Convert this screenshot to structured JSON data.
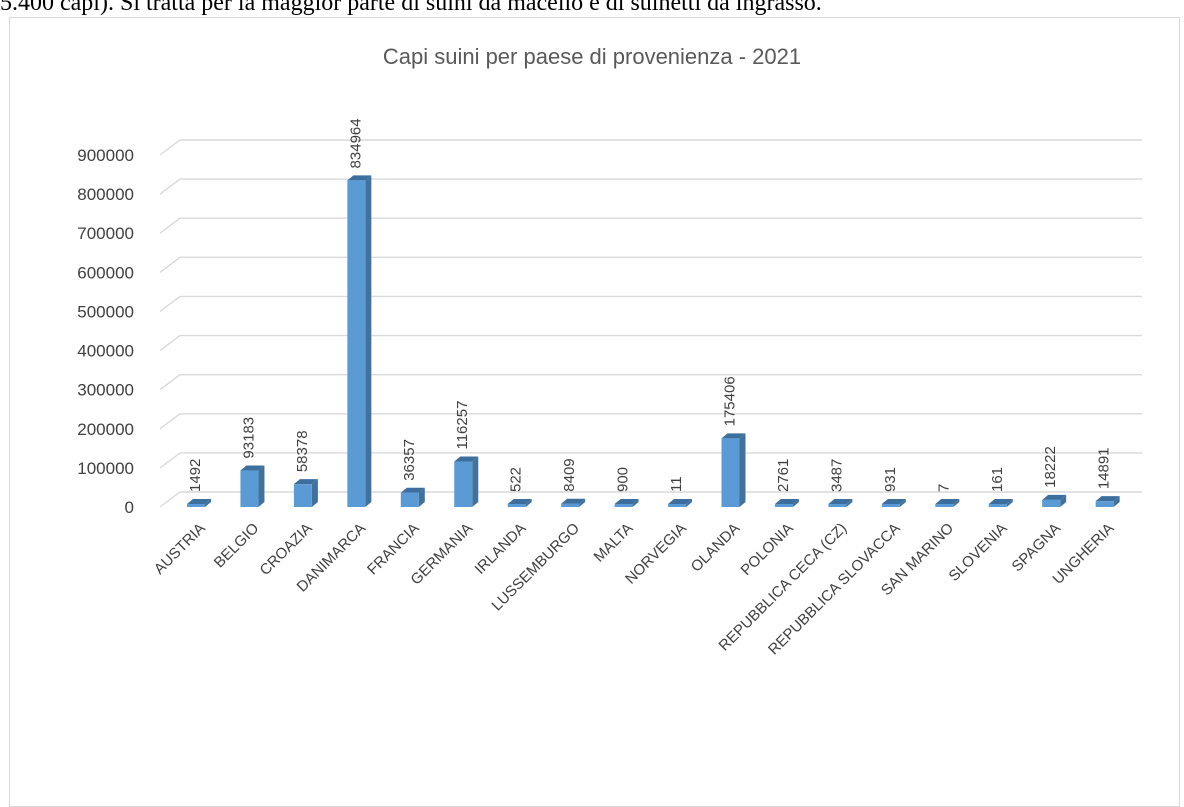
{
  "document": {
    "text_line": "5.400 capi). Si tratta per la maggior parte di suini da macello e di suinetti da ingrasso."
  },
  "chart_data": {
    "type": "bar",
    "title": "Capi suini per paese di provenienza - 2021",
    "xlabel": "",
    "ylabel": "",
    "categories": [
      "AUSTRIA",
      "BELGIO",
      "CROAZIA",
      "DANIMARCA",
      "FRANCIA",
      "GERMANIA",
      "IRLANDA",
      "LUSSEMBURGO",
      "MALTA",
      "NORVEGIA",
      "OLANDA",
      "POLONIA",
      "REPUBBLICA CECA   (CZ)",
      "REPUBBLICA SLOVACCA",
      "SAN MARINO",
      "SLOVENIA",
      "SPAGNA",
      "UNGHERIA"
    ],
    "values": [
      1492,
      93183,
      58378,
      834964,
      36357,
      116257,
      522,
      8409,
      900,
      11,
      175406,
      2761,
      3487,
      931,
      7,
      161,
      18222,
      14891
    ],
    "ylim": [
      0,
      900000
    ],
    "yticks": [
      0,
      100000,
      200000,
      300000,
      400000,
      500000,
      600000,
      700000,
      800000,
      900000
    ],
    "grid": true,
    "legend": "none",
    "colors": {
      "bar_front": "#5b9bd5",
      "bar_side": "#41719c",
      "bar_top": "#3d6f9e",
      "grid": "#d9d9d9"
    }
  }
}
